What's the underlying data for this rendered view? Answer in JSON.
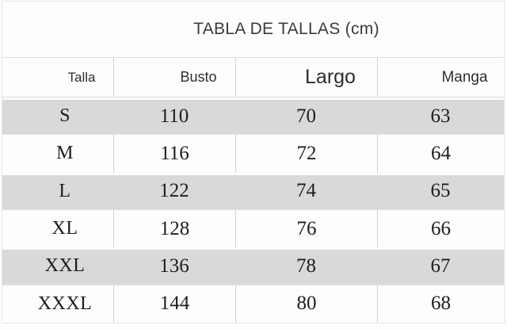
{
  "title": "TABLA DE TALLAS (cm)",
  "columns": [
    "Talla",
    "Busto",
    "Largo",
    "Manga"
  ],
  "rows": [
    {
      "talla": "S",
      "busto": "110",
      "largo": "70",
      "manga": "63"
    },
    {
      "talla": "M",
      "busto": "116",
      "largo": "72",
      "manga": "64"
    },
    {
      "talla": "L",
      "busto": "122",
      "largo": "74",
      "manga": "65"
    },
    {
      "talla": "XL",
      "busto": "128",
      "largo": "76",
      "manga": "66"
    },
    {
      "talla": "XXL",
      "busto": "136",
      "largo": "78",
      "manga": "67"
    },
    {
      "talla": "XXXL",
      "busto": "144",
      "largo": "80",
      "manga": "68"
    }
  ],
  "colors": {
    "shaded_row": "#d9d9d9",
    "divider": "#c9d1d8",
    "horizontal_line": "#d8dde1",
    "outer_border": "#e3e7ea",
    "title_text": "#3b3b3b",
    "header_text": "#2d2e30",
    "data_text": "#1d1d1f",
    "background": "#fdfdfe"
  },
  "chart_data": {
    "type": "table",
    "title": "TABLA DE TALLAS (cm)",
    "units": "cm",
    "columns": [
      "Talla",
      "Busto",
      "Largo",
      "Manga"
    ],
    "rows": [
      [
        "S",
        110,
        70,
        63
      ],
      [
        "M",
        116,
        72,
        64
      ],
      [
        "L",
        122,
        74,
        65
      ],
      [
        "XL",
        128,
        76,
        66
      ],
      [
        "XXL",
        136,
        78,
        67
      ],
      [
        "XXXL",
        144,
        80,
        68
      ]
    ],
    "shaded_rows": [
      "S",
      "L",
      "XXL"
    ],
    "legend_position": "none",
    "grid": "horizontal-and-vertical-dividers"
  }
}
